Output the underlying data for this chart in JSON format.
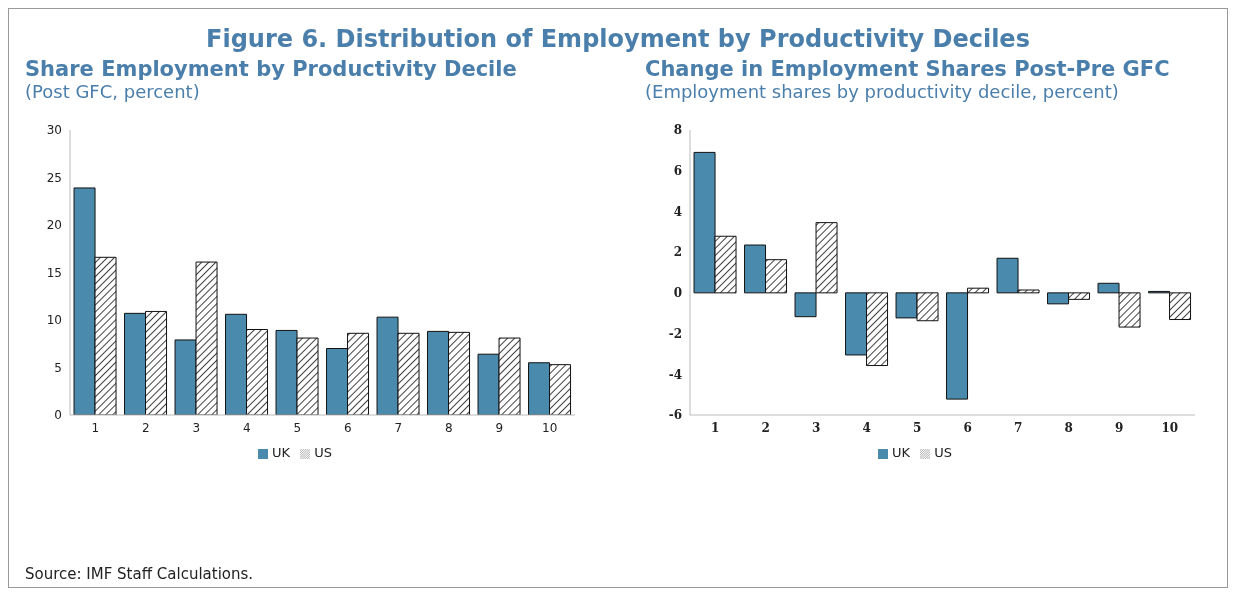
{
  "chart_data": [
    {
      "type": "other",
      "title": "Figure 6. Distribution of Employment by Productivity Deciles",
      "annotations": [
        "Source: IMF Staff Calculations."
      ]
    },
    {
      "type": "bar",
      "title": "Share Employment by Productivity Decile",
      "subtitle": "(Post GFC, percent)",
      "categories": [
        "1",
        "2",
        "3",
        "4",
        "5",
        "6",
        "7",
        "8",
        "9",
        "10"
      ],
      "ylim": [
        0,
        30
      ],
      "yticks": [
        0,
        5,
        10,
        15,
        20,
        25,
        30
      ],
      "legend": "bottom",
      "series": [
        {
          "name": "UK",
          "color": "#4a8bad",
          "values": [
            23.9,
            10.7,
            7.9,
            10.6,
            8.9,
            7.0,
            10.3,
            8.8,
            6.4,
            5.5
          ]
        },
        {
          "name": "US",
          "color": "#111111",
          "values": [
            16.6,
            10.9,
            16.1,
            9.0,
            8.1,
            8.6,
            8.6,
            8.7,
            8.1,
            5.3
          ]
        }
      ]
    },
    {
      "type": "bar",
      "title": "Change in Employment Shares Post-Pre GFC",
      "subtitle": "(Employment shares by productivity decile, percent)",
      "categories": [
        "1",
        "2",
        "3",
        "4",
        "5",
        "6",
        "7",
        "8",
        "9",
        "10"
      ],
      "ylim": [
        -6,
        8
      ],
      "yticks": [
        -6,
        -4,
        -2,
        0,
        2,
        4,
        6,
        8
      ],
      "legend": "bottom",
      "series": [
        {
          "name": "UK",
          "color": "#4a8bad",
          "values": [
            6.9,
            2.35,
            -1.17,
            -3.05,
            -1.23,
            -5.22,
            1.7,
            -0.54,
            0.47,
            0.07
          ]
        },
        {
          "name": "US",
          "color": "#111111",
          "values": [
            2.78,
            1.63,
            3.45,
            -3.57,
            -1.37,
            0.23,
            0.14,
            -0.32,
            -1.68,
            -1.31
          ]
        }
      ]
    }
  ]
}
